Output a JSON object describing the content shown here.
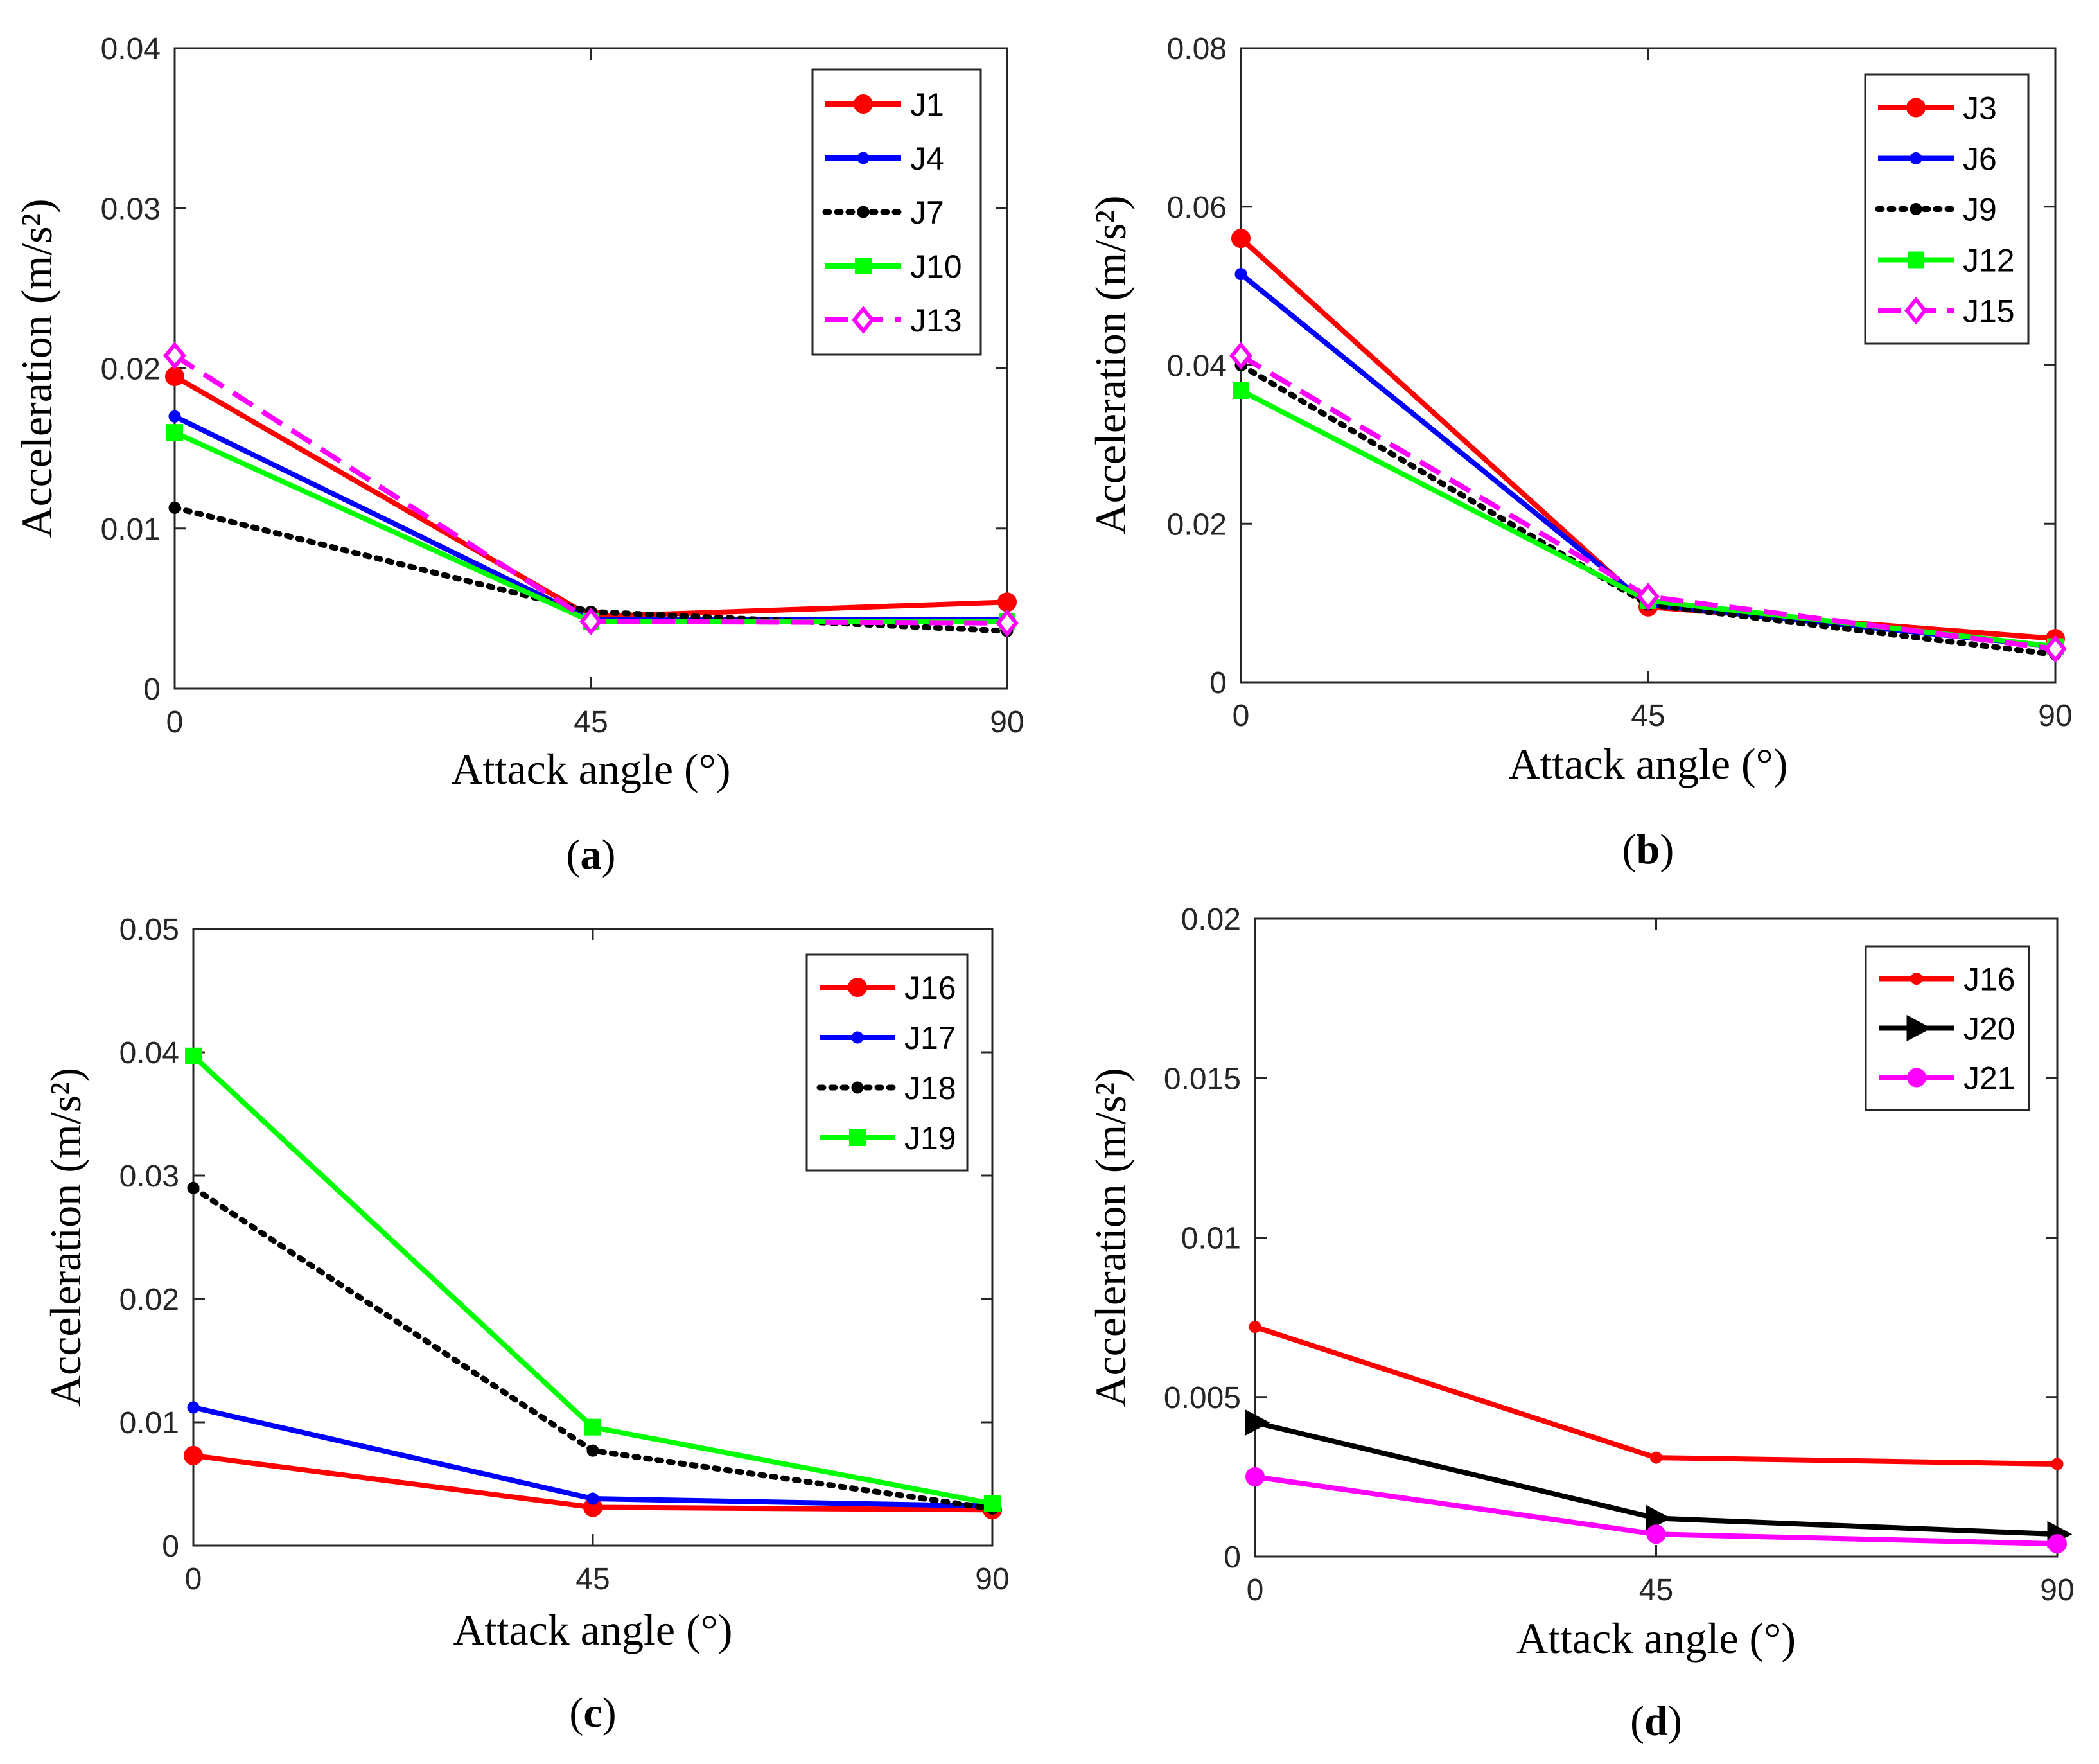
{
  "chart_data": [
    {
      "type": "line",
      "panel_label": "a",
      "xlabel": "Attack angle (°)",
      "ylabel": "Acceleration (m/s²)",
      "x": [
        0,
        45,
        90
      ],
      "x_ticks": [
        "0",
        "45",
        "90"
      ],
      "xlim": [
        0,
        90
      ],
      "ylim": [
        0,
        0.04
      ],
      "y_ticks": [
        "0",
        "0.01",
        "0.02",
        "0.03",
        "0.04"
      ],
      "legend_position": "top-right",
      "series": [
        {
          "name": "J1",
          "values": [
            0.0195,
            0.0045,
            0.0054
          ],
          "color": "#ff0000",
          "style": "solid",
          "marker": "circle"
        },
        {
          "name": "J4",
          "values": [
            0.017,
            0.0043,
            0.0043
          ],
          "color": "#0000ff",
          "style": "solid",
          "marker": "dot"
        },
        {
          "name": "J7",
          "values": [
            0.0113,
            0.0048,
            0.0036
          ],
          "color": "#000000",
          "style": "dotted",
          "marker": "dot"
        },
        {
          "name": "J10",
          "values": [
            0.016,
            0.0042,
            0.0042
          ],
          "color": "#00ff00",
          "style": "solid",
          "marker": "square"
        },
        {
          "name": "J13",
          "values": [
            0.0208,
            0.0042,
            0.0041
          ],
          "color": "#ff00ff",
          "style": "dashed",
          "marker": "diamond"
        }
      ]
    },
    {
      "type": "line",
      "panel_label": "b",
      "xlabel": "Attack angle (°)",
      "ylabel": "Acceleration (m/s²)",
      "x": [
        0,
        45,
        90
      ],
      "x_ticks": [
        "0",
        "45",
        "90"
      ],
      "xlim": [
        0,
        90
      ],
      "ylim": [
        0,
        0.08
      ],
      "y_ticks": [
        "0",
        "0.02",
        "0.04",
        "0.06",
        "0.08"
      ],
      "legend_position": "top-right",
      "series": [
        {
          "name": "J3",
          "values": [
            0.056,
            0.0095,
            0.0055
          ],
          "color": "#ff0000",
          "style": "solid",
          "marker": "circle"
        },
        {
          "name": "J6",
          "values": [
            0.0515,
            0.0098,
            0.0045
          ],
          "color": "#0000ff",
          "style": "solid",
          "marker": "dot"
        },
        {
          "name": "J9",
          "values": [
            0.04,
            0.0098,
            0.0035
          ],
          "color": "#000000",
          "style": "dotted",
          "marker": "dot"
        },
        {
          "name": "J12",
          "values": [
            0.0368,
            0.0103,
            0.0045
          ],
          "color": "#00ff00",
          "style": "solid",
          "marker": "square"
        },
        {
          "name": "J15",
          "values": [
            0.0412,
            0.0108,
            0.0042
          ],
          "color": "#ff00ff",
          "style": "dashed",
          "marker": "diamond"
        }
      ]
    },
    {
      "type": "line",
      "panel_label": "c",
      "xlabel": "Attack angle (°)",
      "ylabel": "Acceleration (m/s²)",
      "x": [
        0,
        45,
        90
      ],
      "x_ticks": [
        "0",
        "45",
        "90"
      ],
      "xlim": [
        0,
        90
      ],
      "ylim": [
        0,
        0.05
      ],
      "y_ticks": [
        "0",
        "0.01",
        "0.02",
        "0.03",
        "0.04",
        "0.05"
      ],
      "legend_position": "top-right",
      "series": [
        {
          "name": "J16",
          "values": [
            0.0073,
            0.0031,
            0.0029
          ],
          "color": "#ff0000",
          "style": "solid",
          "marker": "circle"
        },
        {
          "name": "J17",
          "values": [
            0.0112,
            0.0038,
            0.0032
          ],
          "color": "#0000ff",
          "style": "solid",
          "marker": "dot"
        },
        {
          "name": "J18",
          "values": [
            0.029,
            0.0077,
            0.003
          ],
          "color": "#000000",
          "style": "dotted",
          "marker": "dot"
        },
        {
          "name": "J19",
          "values": [
            0.0397,
            0.0096,
            0.0034
          ],
          "color": "#00ff00",
          "style": "solid",
          "marker": "square"
        }
      ]
    },
    {
      "type": "line",
      "panel_label": "d",
      "xlabel": "Attack angle (°)",
      "ylabel": "Acceleration (m/s²)",
      "x": [
        0,
        45,
        90
      ],
      "x_ticks": [
        "0",
        "45",
        "90"
      ],
      "xlim": [
        0,
        90
      ],
      "ylim": [
        0,
        0.02
      ],
      "y_ticks": [
        "0",
        "0.005",
        "0.01",
        "0.015",
        "0.02"
      ],
      "legend_position": "top-right",
      "series": [
        {
          "name": "J16",
          "values": [
            0.0072,
            0.0031,
            0.0029
          ],
          "color": "#ff0000",
          "style": "solid",
          "marker": "dot"
        },
        {
          "name": "J20",
          "values": [
            0.0042,
            0.0012,
            0.0007
          ],
          "color": "#000000",
          "style": "solid",
          "marker": "triangle-right"
        },
        {
          "name": "J21",
          "values": [
            0.0025,
            0.0007,
            0.0004
          ],
          "color": "#ff00ff",
          "style": "solid",
          "marker": "circle"
        }
      ]
    }
  ]
}
